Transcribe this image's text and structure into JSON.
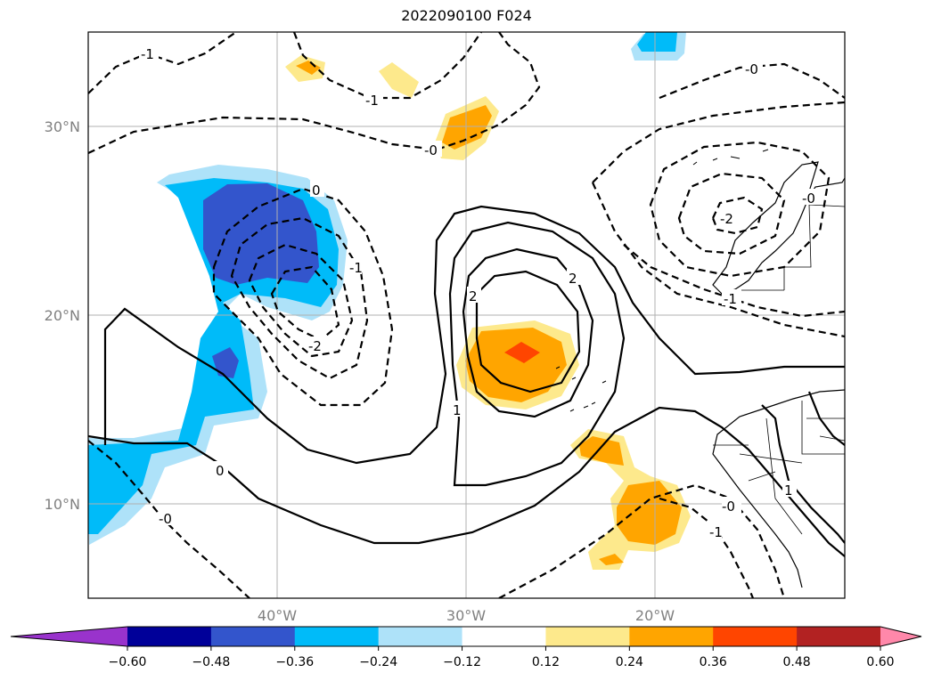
{
  "title": "2022090100 F024",
  "map": {
    "lat_labels": [
      "30°N",
      "20°N",
      "10°N"
    ],
    "lon_labels": [
      "40°W",
      "30°W",
      "20°W"
    ],
    "gridline_color": "#b0b0b0"
  },
  "colorbar": {
    "ticks": [
      "−0.60",
      "−0.48",
      "−0.36",
      "−0.24",
      "−0.12",
      "0.12",
      "0.24",
      "0.36",
      "0.48",
      "0.60"
    ],
    "colors": [
      "#9933cc",
      "#000099",
      "#3355cc",
      "#00bbf9",
      "#aee2f9",
      "#ffffff",
      "#fde98c",
      "#ffa500",
      "#ff4500",
      "#b22222",
      "#ff88aa"
    ],
    "extend": "both"
  },
  "contour_labels": [
    "-1",
    "-1",
    "-0",
    "-0",
    "0",
    "-0",
    "-1",
    "-2",
    "-2",
    "2",
    "2",
    "1",
    "-0",
    "-1",
    "0",
    "-0",
    "-1",
    "1"
  ]
}
